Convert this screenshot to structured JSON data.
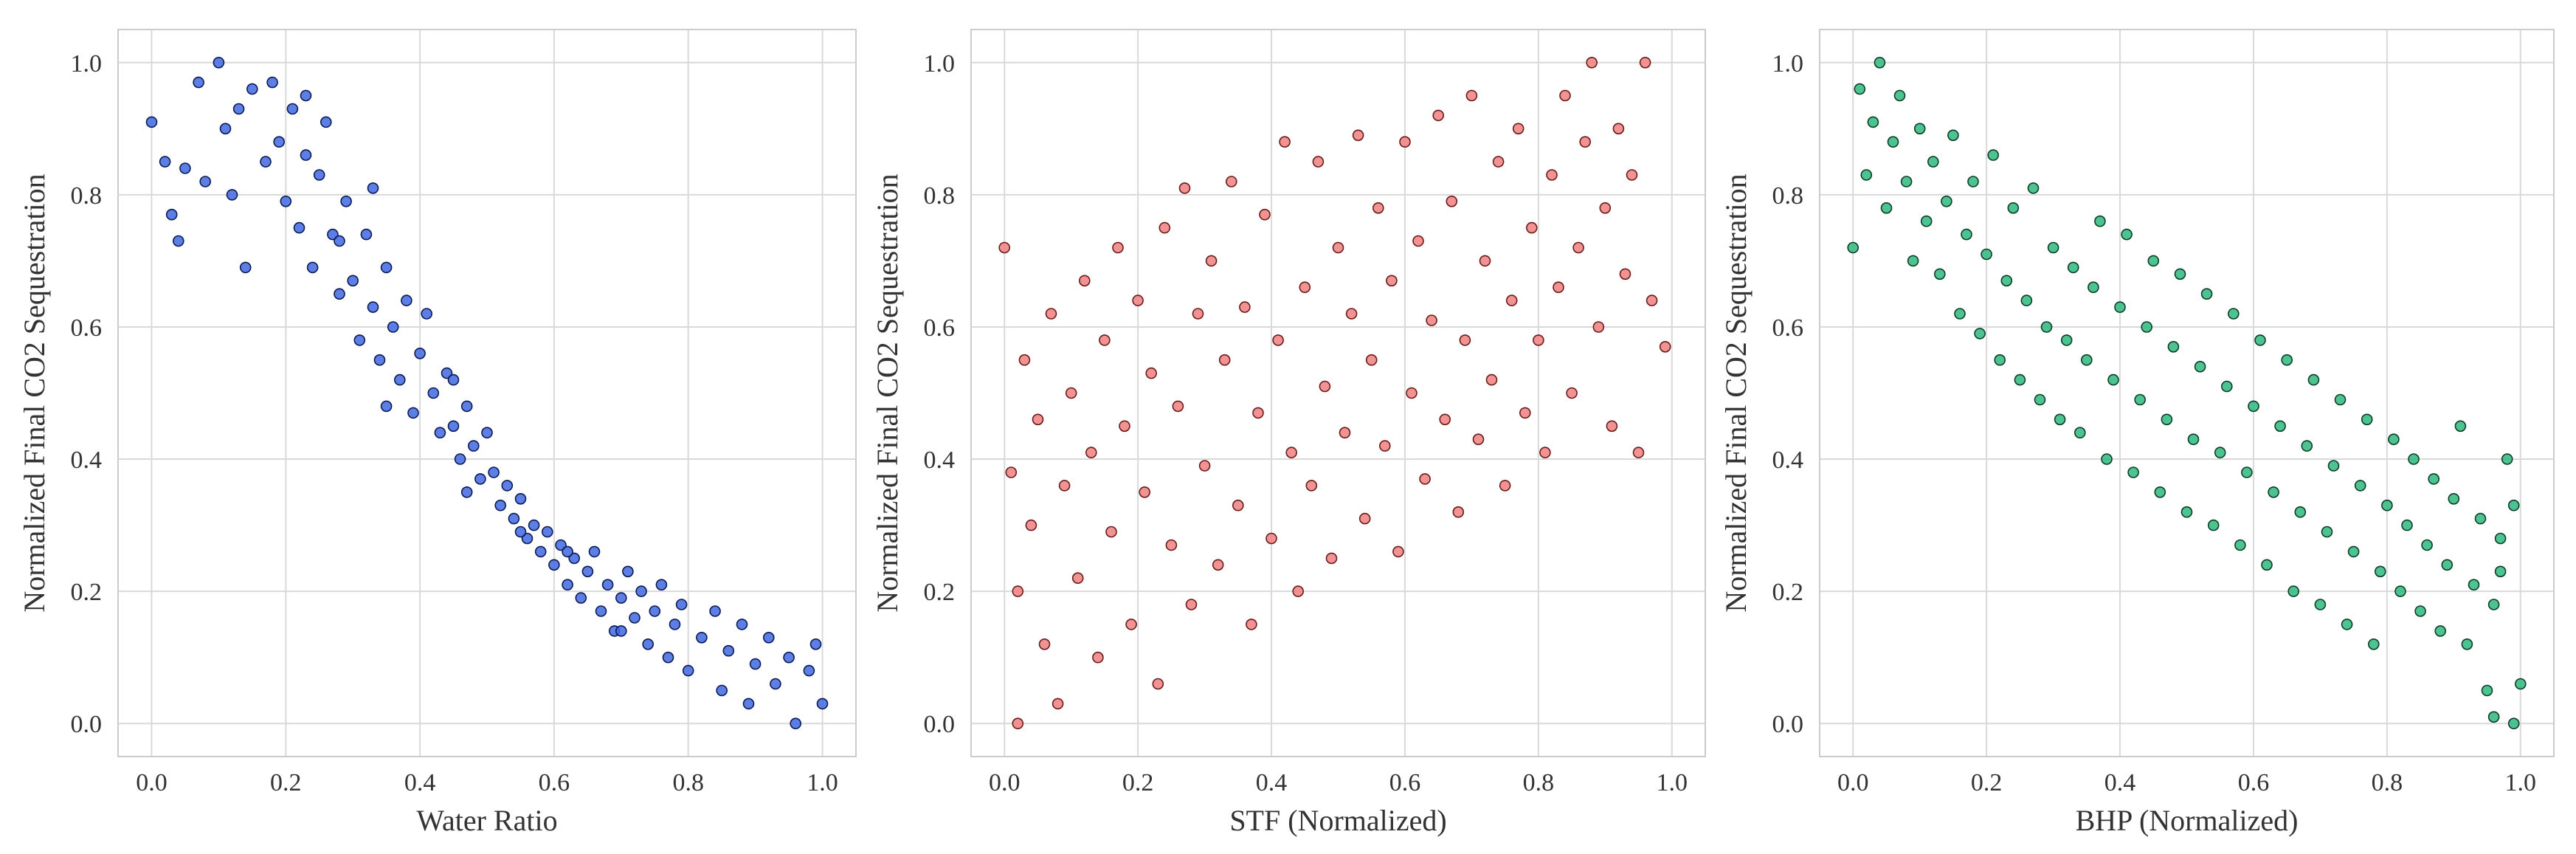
{
  "chart_data": [
    {
      "type": "scatter",
      "xlabel": "Water Ratio",
      "ylabel": "Normalized Final CO2 Sequestration",
      "xlim": [
        -0.05,
        1.05
      ],
      "ylim": [
        -0.05,
        1.05
      ],
      "xticks": [
        "0.0",
        "0.2",
        "0.4",
        "0.6",
        "0.8",
        "1.0"
      ],
      "yticks": [
        "0.0",
        "0.2",
        "0.4",
        "0.6",
        "0.8",
        "1.0"
      ],
      "grid": true,
      "color": "#4169E1",
      "edge_color": "#0a1a55",
      "trend": "strong nonlinear negative",
      "points": [
        [
          0.0,
          0.91
        ],
        [
          0.02,
          0.85
        ],
        [
          0.03,
          0.77
        ],
        [
          0.04,
          0.73
        ],
        [
          0.05,
          0.84
        ],
        [
          0.07,
          0.97
        ],
        [
          0.08,
          0.82
        ],
        [
          0.1,
          1.0
        ],
        [
          0.11,
          0.9
        ],
        [
          0.12,
          0.8
        ],
        [
          0.13,
          0.93
        ],
        [
          0.14,
          0.69
        ],
        [
          0.15,
          0.96
        ],
        [
          0.17,
          0.85
        ],
        [
          0.18,
          0.97
        ],
        [
          0.19,
          0.88
        ],
        [
          0.2,
          0.79
        ],
        [
          0.21,
          0.93
        ],
        [
          0.22,
          0.75
        ],
        [
          0.23,
          0.86
        ],
        [
          0.24,
          0.69
        ],
        [
          0.25,
          0.83
        ],
        [
          0.26,
          0.91
        ],
        [
          0.27,
          0.74
        ],
        [
          0.28,
          0.65
        ],
        [
          0.29,
          0.79
        ],
        [
          0.3,
          0.67
        ],
        [
          0.31,
          0.58
        ],
        [
          0.32,
          0.74
        ],
        [
          0.33,
          0.63
        ],
        [
          0.34,
          0.55
        ],
        [
          0.35,
          0.69
        ],
        [
          0.36,
          0.6
        ],
        [
          0.37,
          0.52
        ],
        [
          0.38,
          0.64
        ],
        [
          0.39,
          0.47
        ],
        [
          0.4,
          0.56
        ],
        [
          0.41,
          0.62
        ],
        [
          0.42,
          0.5
        ],
        [
          0.43,
          0.44
        ],
        [
          0.44,
          0.53
        ],
        [
          0.45,
          0.45
        ],
        [
          0.46,
          0.4
        ],
        [
          0.47,
          0.48
        ],
        [
          0.48,
          0.42
        ],
        [
          0.49,
          0.37
        ],
        [
          0.5,
          0.44
        ],
        [
          0.51,
          0.38
        ],
        [
          0.52,
          0.33
        ],
        [
          0.53,
          0.36
        ],
        [
          0.54,
          0.31
        ],
        [
          0.55,
          0.34
        ],
        [
          0.56,
          0.28
        ],
        [
          0.57,
          0.3
        ],
        [
          0.58,
          0.26
        ],
        [
          0.59,
          0.29
        ],
        [
          0.6,
          0.24
        ],
        [
          0.61,
          0.27
        ],
        [
          0.62,
          0.21
        ],
        [
          0.63,
          0.25
        ],
        [
          0.64,
          0.19
        ],
        [
          0.65,
          0.23
        ],
        [
          0.66,
          0.26
        ],
        [
          0.67,
          0.17
        ],
        [
          0.68,
          0.21
        ],
        [
          0.69,
          0.14
        ],
        [
          0.7,
          0.19
        ],
        [
          0.71,
          0.23
        ],
        [
          0.72,
          0.16
        ],
        [
          0.73,
          0.2
        ],
        [
          0.74,
          0.12
        ],
        [
          0.75,
          0.17
        ],
        [
          0.76,
          0.21
        ],
        [
          0.77,
          0.1
        ],
        [
          0.78,
          0.15
        ],
        [
          0.79,
          0.18
        ],
        [
          0.8,
          0.08
        ],
        [
          0.82,
          0.13
        ],
        [
          0.84,
          0.17
        ],
        [
          0.85,
          0.05
        ],
        [
          0.86,
          0.11
        ],
        [
          0.88,
          0.15
        ],
        [
          0.89,
          0.03
        ],
        [
          0.9,
          0.09
        ],
        [
          0.92,
          0.13
        ],
        [
          0.93,
          0.06
        ],
        [
          0.95,
          0.1
        ],
        [
          0.96,
          0.0
        ],
        [
          0.98,
          0.08
        ],
        [
          1.0,
          0.03
        ],
        [
          0.99,
          0.12
        ],
        [
          0.35,
          0.48
        ],
        [
          0.28,
          0.73
        ],
        [
          0.45,
          0.52
        ],
        [
          0.55,
          0.29
        ],
        [
          0.62,
          0.26
        ],
        [
          0.7,
          0.14
        ],
        [
          0.23,
          0.95
        ],
        [
          0.33,
          0.81
        ],
        [
          0.47,
          0.35
        ]
      ]
    },
    {
      "type": "scatter",
      "xlabel": "STF (Normalized)",
      "ylabel": "Normalized Final CO2 Sequestration",
      "xlim": [
        -0.05,
        1.05
      ],
      "ylim": [
        -0.05,
        1.05
      ],
      "xticks": [
        "0.0",
        "0.2",
        "0.4",
        "0.6",
        "0.8",
        "1.0"
      ],
      "yticks": [
        "0.0",
        "0.2",
        "0.4",
        "0.6",
        "0.8",
        "1.0"
      ],
      "grid": true,
      "color": "#F08080",
      "edge_color": "#6b1a1a",
      "trend": "moderate positive",
      "points": [
        [
          0.0,
          0.72
        ],
        [
          0.01,
          0.38
        ],
        [
          0.02,
          0.0
        ],
        [
          0.02,
          0.2
        ],
        [
          0.03,
          0.55
        ],
        [
          0.04,
          0.3
        ],
        [
          0.05,
          0.46
        ],
        [
          0.06,
          0.12
        ],
        [
          0.07,
          0.62
        ],
        [
          0.08,
          0.03
        ],
        [
          0.09,
          0.36
        ],
        [
          0.1,
          0.5
        ],
        [
          0.11,
          0.22
        ],
        [
          0.12,
          0.67
        ],
        [
          0.13,
          0.41
        ],
        [
          0.14,
          0.1
        ],
        [
          0.15,
          0.58
        ],
        [
          0.16,
          0.29
        ],
        [
          0.17,
          0.72
        ],
        [
          0.18,
          0.45
        ],
        [
          0.19,
          0.15
        ],
        [
          0.2,
          0.64
        ],
        [
          0.21,
          0.35
        ],
        [
          0.22,
          0.53
        ],
        [
          0.23,
          0.06
        ],
        [
          0.24,
          0.75
        ],
        [
          0.25,
          0.27
        ],
        [
          0.26,
          0.48
        ],
        [
          0.27,
          0.81
        ],
        [
          0.28,
          0.18
        ],
        [
          0.29,
          0.62
        ],
        [
          0.3,
          0.39
        ],
        [
          0.31,
          0.7
        ],
        [
          0.32,
          0.24
        ],
        [
          0.33,
          0.55
        ],
        [
          0.34,
          0.82
        ],
        [
          0.35,
          0.33
        ],
        [
          0.36,
          0.63
        ],
        [
          0.37,
          0.15
        ],
        [
          0.38,
          0.47
        ],
        [
          0.39,
          0.77
        ],
        [
          0.4,
          0.28
        ],
        [
          0.41,
          0.58
        ],
        [
          0.42,
          0.88
        ],
        [
          0.43,
          0.41
        ],
        [
          0.44,
          0.2
        ],
        [
          0.45,
          0.66
        ],
        [
          0.46,
          0.36
        ],
        [
          0.47,
          0.85
        ],
        [
          0.48,
          0.51
        ],
        [
          0.49,
          0.25
        ],
        [
          0.5,
          0.72
        ],
        [
          0.51,
          0.44
        ],
        [
          0.52,
          0.62
        ],
        [
          0.53,
          0.89
        ],
        [
          0.54,
          0.31
        ],
        [
          0.55,
          0.55
        ],
        [
          0.56,
          0.78
        ],
        [
          0.57,
          0.42
        ],
        [
          0.58,
          0.67
        ],
        [
          0.59,
          0.26
        ],
        [
          0.6,
          0.88
        ],
        [
          0.61,
          0.5
        ],
        [
          0.62,
          0.73
        ],
        [
          0.63,
          0.37
        ],
        [
          0.64,
          0.61
        ],
        [
          0.65,
          0.92
        ],
        [
          0.66,
          0.46
        ],
        [
          0.67,
          0.79
        ],
        [
          0.68,
          0.32
        ],
        [
          0.69,
          0.58
        ],
        [
          0.7,
          0.95
        ],
        [
          0.71,
          0.43
        ],
        [
          0.72,
          0.7
        ],
        [
          0.73,
          0.52
        ],
        [
          0.74,
          0.85
        ],
        [
          0.75,
          0.36
        ],
        [
          0.76,
          0.64
        ],
        [
          0.77,
          0.9
        ],
        [
          0.78,
          0.47
        ],
        [
          0.79,
          0.75
        ],
        [
          0.8,
          0.58
        ],
        [
          0.81,
          0.41
        ],
        [
          0.82,
          0.83
        ],
        [
          0.83,
          0.66
        ],
        [
          0.84,
          0.95
        ],
        [
          0.85,
          0.5
        ],
        [
          0.86,
          0.72
        ],
        [
          0.87,
          0.88
        ],
        [
          0.88,
          1.0
        ],
        [
          0.89,
          0.6
        ],
        [
          0.9,
          0.78
        ],
        [
          0.91,
          0.45
        ],
        [
          0.92,
          0.9
        ],
        [
          0.93,
          0.68
        ],
        [
          0.94,
          0.83
        ],
        [
          0.95,
          0.41
        ],
        [
          0.96,
          1.0
        ],
        [
          0.97,
          0.64
        ],
        [
          0.99,
          0.57
        ]
      ]
    },
    {
      "type": "scatter",
      "xlabel": "BHP (Normalized)",
      "ylabel": "Normalized Final CO2 Sequestration",
      "xlim": [
        -0.05,
        1.05
      ],
      "ylim": [
        -0.05,
        1.05
      ],
      "xticks": [
        "0.0",
        "0.2",
        "0.4",
        "0.6",
        "0.8",
        "1.0"
      ],
      "yticks": [
        "0.0",
        "0.2",
        "0.4",
        "0.6",
        "0.8",
        "1.0"
      ],
      "grid": true,
      "color": "#2EB87E",
      "edge_color": "#0b3d27",
      "trend": "strong linear negative",
      "points": [
        [
          0.0,
          0.72
        ],
        [
          0.01,
          0.96
        ],
        [
          0.02,
          0.83
        ],
        [
          0.03,
          0.91
        ],
        [
          0.04,
          1.0
        ],
        [
          0.05,
          0.78
        ],
        [
          0.06,
          0.88
        ],
        [
          0.07,
          0.95
        ],
        [
          0.08,
          0.82
        ],
        [
          0.09,
          0.7
        ],
        [
          0.1,
          0.9
        ],
        [
          0.11,
          0.76
        ],
        [
          0.12,
          0.85
        ],
        [
          0.13,
          0.68
        ],
        [
          0.14,
          0.79
        ],
        [
          0.15,
          0.89
        ],
        [
          0.16,
          0.62
        ],
        [
          0.17,
          0.74
        ],
        [
          0.18,
          0.82
        ],
        [
          0.19,
          0.59
        ],
        [
          0.2,
          0.71
        ],
        [
          0.21,
          0.86
        ],
        [
          0.22,
          0.55
        ],
        [
          0.23,
          0.67
        ],
        [
          0.24,
          0.78
        ],
        [
          0.25,
          0.52
        ],
        [
          0.26,
          0.64
        ],
        [
          0.27,
          0.81
        ],
        [
          0.28,
          0.49
        ],
        [
          0.29,
          0.6
        ],
        [
          0.3,
          0.72
        ],
        [
          0.31,
          0.46
        ],
        [
          0.32,
          0.58
        ],
        [
          0.33,
          0.69
        ],
        [
          0.34,
          0.44
        ],
        [
          0.35,
          0.55
        ],
        [
          0.36,
          0.66
        ],
        [
          0.37,
          0.76
        ],
        [
          0.38,
          0.4
        ],
        [
          0.39,
          0.52
        ],
        [
          0.4,
          0.63
        ],
        [
          0.41,
          0.74
        ],
        [
          0.42,
          0.38
        ],
        [
          0.43,
          0.49
        ],
        [
          0.44,
          0.6
        ],
        [
          0.45,
          0.7
        ],
        [
          0.46,
          0.35
        ],
        [
          0.47,
          0.46
        ],
        [
          0.48,
          0.57
        ],
        [
          0.49,
          0.68
        ],
        [
          0.5,
          0.32
        ],
        [
          0.51,
          0.43
        ],
        [
          0.52,
          0.54
        ],
        [
          0.53,
          0.65
        ],
        [
          0.54,
          0.3
        ],
        [
          0.55,
          0.41
        ],
        [
          0.56,
          0.51
        ],
        [
          0.57,
          0.62
        ],
        [
          0.58,
          0.27
        ],
        [
          0.59,
          0.38
        ],
        [
          0.6,
          0.48
        ],
        [
          0.61,
          0.58
        ],
        [
          0.62,
          0.24
        ],
        [
          0.63,
          0.35
        ],
        [
          0.64,
          0.45
        ],
        [
          0.65,
          0.55
        ],
        [
          0.66,
          0.2
        ],
        [
          0.67,
          0.32
        ],
        [
          0.68,
          0.42
        ],
        [
          0.69,
          0.52
        ],
        [
          0.7,
          0.18
        ],
        [
          0.71,
          0.29
        ],
        [
          0.72,
          0.39
        ],
        [
          0.73,
          0.49
        ],
        [
          0.74,
          0.15
        ],
        [
          0.75,
          0.26
        ],
        [
          0.76,
          0.36
        ],
        [
          0.77,
          0.46
        ],
        [
          0.78,
          0.12
        ],
        [
          0.79,
          0.23
        ],
        [
          0.8,
          0.33
        ],
        [
          0.81,
          0.43
        ],
        [
          0.82,
          0.2
        ],
        [
          0.83,
          0.3
        ],
        [
          0.84,
          0.4
        ],
        [
          0.85,
          0.17
        ],
        [
          0.86,
          0.27
        ],
        [
          0.87,
          0.37
        ],
        [
          0.88,
          0.14
        ],
        [
          0.89,
          0.24
        ],
        [
          0.9,
          0.34
        ],
        [
          0.91,
          0.45
        ],
        [
          0.92,
          0.12
        ],
        [
          0.93,
          0.21
        ],
        [
          0.94,
          0.31
        ],
        [
          0.95,
          0.05
        ],
        [
          0.96,
          0.18
        ],
        [
          0.97,
          0.28
        ],
        [
          0.98,
          0.4
        ],
        [
          0.99,
          0.0
        ],
        [
          1.0,
          0.06
        ],
        [
          0.99,
          0.33
        ],
        [
          0.97,
          0.23
        ],
        [
          0.96,
          0.01
        ]
      ]
    }
  ]
}
